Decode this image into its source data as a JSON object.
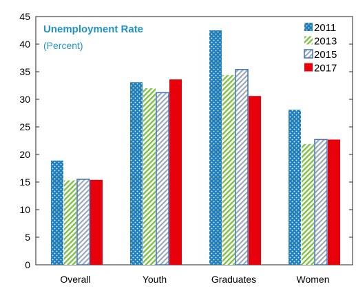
{
  "colors": {
    "s2011": "#1f7fbf",
    "s2013": "#7ec242",
    "s2015": "#3f74b8",
    "s2017": "#e8000a",
    "title": "#1f93c9"
  },
  "chart_data": {
    "type": "bar",
    "title": "Unemployment Rate",
    "subtitle": "(Percent)",
    "xlabel": "",
    "ylabel": "",
    "ylim": [
      0,
      45
    ],
    "yticks": [
      0,
      5,
      10,
      15,
      20,
      25,
      30,
      35,
      40,
      45
    ],
    "grid": false,
    "legend_position": "top-right",
    "categories": [
      "Overall",
      "Youth",
      "Graduates",
      "Women"
    ],
    "series": [
      {
        "name": "2011",
        "values": [
          18.9,
          33.1,
          42.5,
          28.1
        ],
        "pattern": "dots"
      },
      {
        "name": "2013",
        "values": [
          15.3,
          32.0,
          34.4,
          21.9
        ],
        "pattern": "diagonal-hatch"
      },
      {
        "name": "2015",
        "values": [
          15.5,
          31.2,
          35.4,
          22.7
        ],
        "pattern": "diagonal-hatch-outlined"
      },
      {
        "name": "2017",
        "values": [
          15.4,
          33.6,
          30.6,
          22.7
        ],
        "pattern": "solid"
      }
    ]
  }
}
